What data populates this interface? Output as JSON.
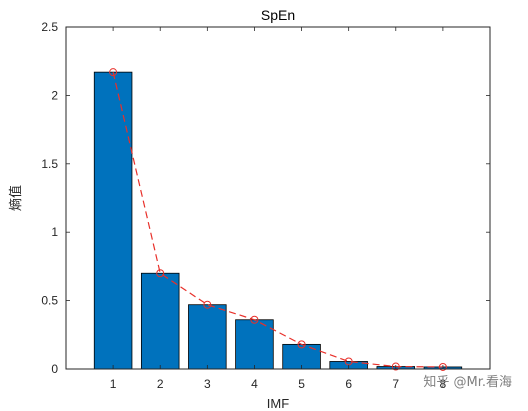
{
  "chart_data": {
    "type": "bar",
    "title": "SpEn",
    "xlabel": "IMF",
    "ylabel": "熵值",
    "categories": [
      "1",
      "2",
      "3",
      "4",
      "5",
      "6",
      "7",
      "8"
    ],
    "series": [
      {
        "values": [
          2.17,
          0.7,
          0.47,
          0.36,
          0.18,
          0.055,
          0.018,
          0.015
        ]
      }
    ],
    "overlay_line": {
      "style": "dashed",
      "marker": "circle",
      "values": [
        2.17,
        0.7,
        0.47,
        0.36,
        0.18,
        0.055,
        0.018,
        0.015
      ]
    },
    "xlim": [
      0,
      9
    ],
    "ylim": [
      0,
      2.5
    ],
    "yticks": [
      "0",
      "0.5",
      "1",
      "1.5",
      "2",
      "2.5"
    ],
    "grid": false,
    "colors": {
      "bar": "#0072BD",
      "line": "#e8302a",
      "axis": "#262626"
    }
  },
  "watermark": "知乎 @Mr.看海"
}
